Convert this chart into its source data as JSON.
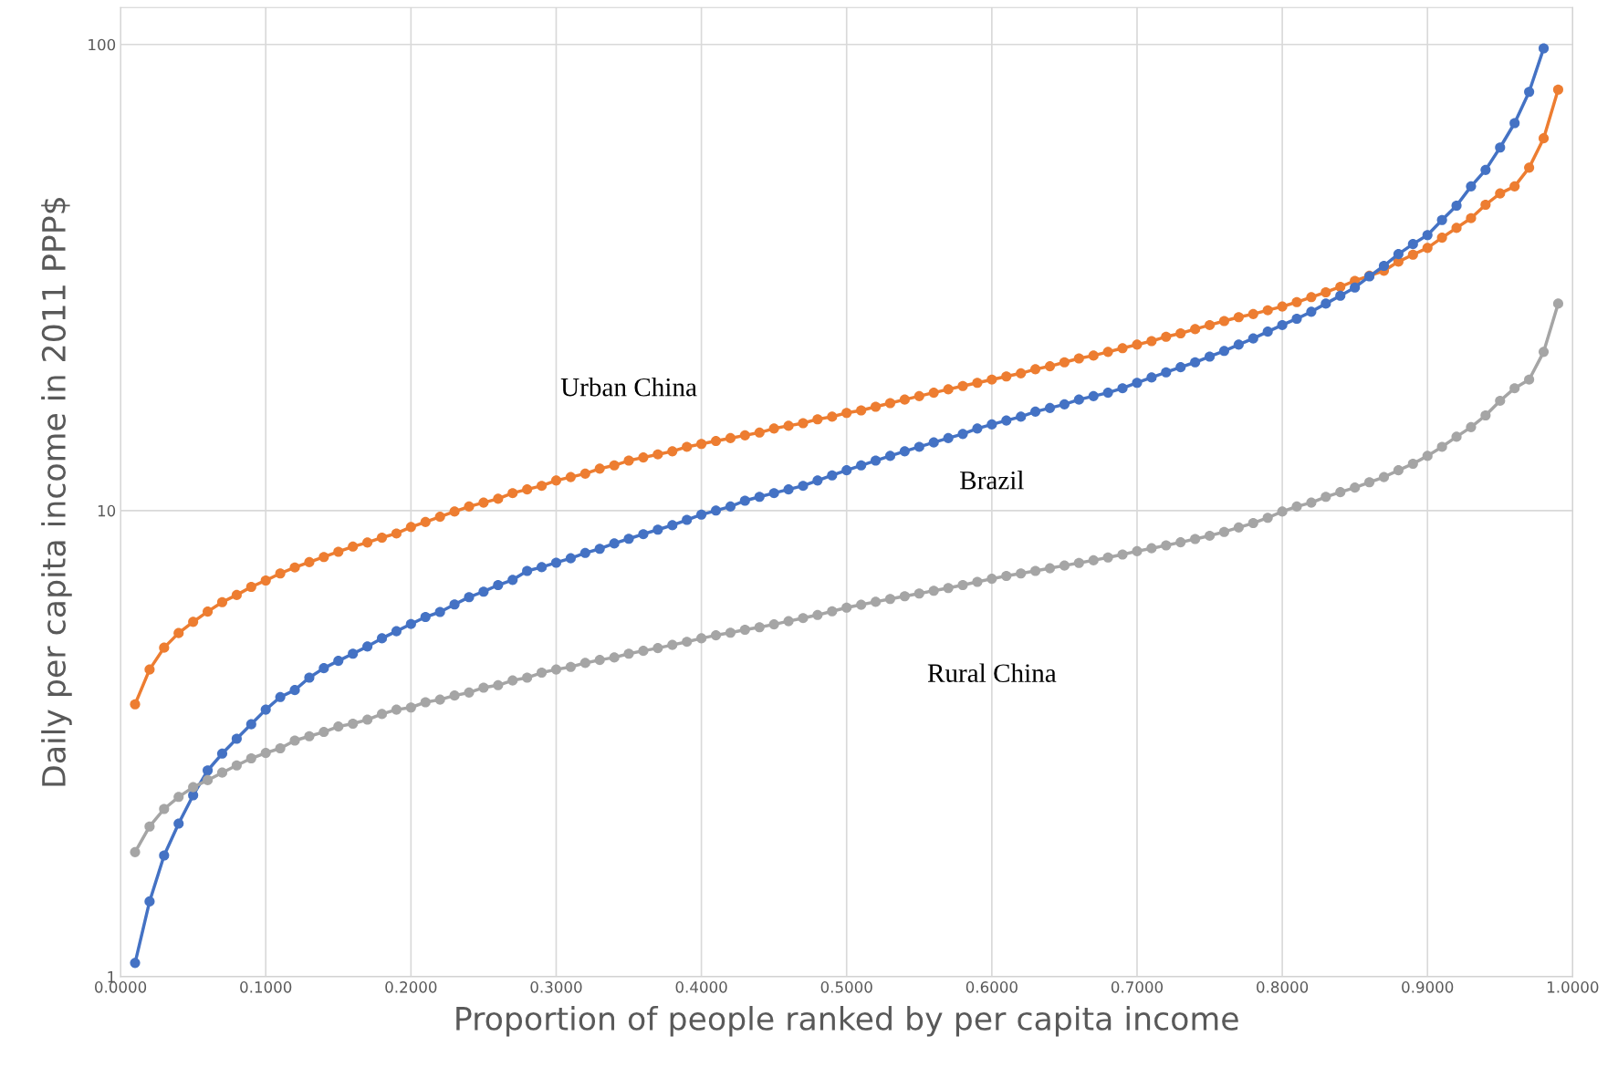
{
  "chart_data": {
    "type": "line",
    "xlabel": "Proportion of people ranked by per capita income",
    "ylabel": "Daily per capita income in 2011 PPP$",
    "log": "y",
    "grid": true,
    "legend": false,
    "marker": "circle",
    "line_style": "solid",
    "xlim": [
      0,
      1
    ],
    "xticks": [
      {
        "value": 0,
        "label": "0.0000"
      },
      {
        "value": 0.1,
        "label": "0.1000"
      },
      {
        "value": 0.2,
        "label": "0.2000"
      },
      {
        "value": 0.3,
        "label": "0.3000"
      },
      {
        "value": 0.4,
        "label": "0.4000"
      },
      {
        "value": 0.5,
        "label": "0.5000"
      },
      {
        "value": 0.6,
        "label": "0.6000"
      },
      {
        "value": 0.7,
        "label": "0.7000"
      },
      {
        "value": 0.8,
        "label": "0.8000"
      },
      {
        "value": 0.9,
        "label": "0.9000"
      },
      {
        "value": 1,
        "label": "1.0000"
      }
    ],
    "ylim": [
      1,
      120
    ],
    "yticks": [
      1,
      10,
      100
    ],
    "x": [
      0.01,
      0.02,
      0.03,
      0.04,
      0.05,
      0.06,
      0.07,
      0.08,
      0.09,
      0.1,
      0.11,
      0.12,
      0.13,
      0.14,
      0.15,
      0.16,
      0.17,
      0.18,
      0.19,
      0.2,
      0.21,
      0.22,
      0.23,
      0.24,
      0.25,
      0.26,
      0.27,
      0.28,
      0.29,
      0.3,
      0.31,
      0.32,
      0.33,
      0.34,
      0.35,
      0.36,
      0.37,
      0.38,
      0.39,
      0.4,
      0.41,
      0.42,
      0.43,
      0.44,
      0.45,
      0.46,
      0.47,
      0.48,
      0.49,
      0.5,
      0.51,
      0.52,
      0.53,
      0.54,
      0.55,
      0.56,
      0.57,
      0.58,
      0.59,
      0.6,
      0.61,
      0.62,
      0.63,
      0.64,
      0.65,
      0.66,
      0.67,
      0.68,
      0.69,
      0.7,
      0.71,
      0.72,
      0.73,
      0.74,
      0.75,
      0.76,
      0.77,
      0.78,
      0.79,
      0.8,
      0.81,
      0.82,
      0.83,
      0.84,
      0.85,
      0.86,
      0.87,
      0.88,
      0.89,
      0.9,
      0.91,
      0.92,
      0.93,
      0.94,
      0.95,
      0.96,
      0.97,
      0.98,
      0.99
    ],
    "series": [
      {
        "name": "Urban China",
        "color": "#ed7d31",
        "values": [
          3.84,
          4.56,
          5.08,
          5.46,
          5.77,
          6.07,
          6.36,
          6.59,
          6.86,
          7.08,
          7.33,
          7.55,
          7.75,
          7.95,
          8.16,
          8.37,
          8.54,
          8.75,
          8.93,
          9.22,
          9.45,
          9.7,
          9.95,
          10.2,
          10.4,
          10.6,
          10.9,
          11.1,
          11.3,
          11.6,
          11.8,
          12.0,
          12.3,
          12.5,
          12.8,
          13.0,
          13.2,
          13.4,
          13.7,
          13.9,
          14.1,
          14.3,
          14.5,
          14.7,
          15.0,
          15.2,
          15.4,
          15.7,
          15.9,
          16.2,
          16.4,
          16.7,
          17.0,
          17.3,
          17.6,
          17.9,
          18.2,
          18.5,
          18.8,
          19.1,
          19.4,
          19.7,
          20.1,
          20.4,
          20.8,
          21.2,
          21.5,
          21.9,
          22.3,
          22.7,
          23.1,
          23.6,
          24.0,
          24.5,
          25.0,
          25.5,
          26.0,
          26.4,
          26.9,
          27.4,
          28.0,
          28.7,
          29.4,
          30.2,
          31.1,
          31.9,
          32.7,
          34.2,
          35.4,
          36.6,
          38.5,
          40.4,
          42.4,
          45.3,
          47.9,
          49.6,
          54.4,
          62.9,
          80.0
        ]
      },
      {
        "name": "Brazil",
        "color": "#4472c4",
        "values": [
          1.07,
          1.45,
          1.82,
          2.13,
          2.45,
          2.77,
          3.01,
          3.24,
          3.48,
          3.74,
          3.98,
          4.12,
          4.38,
          4.59,
          4.76,
          4.93,
          5.11,
          5.32,
          5.51,
          5.71,
          5.91,
          6.06,
          6.29,
          6.52,
          6.7,
          6.92,
          7.1,
          7.42,
          7.56,
          7.73,
          7.9,
          8.11,
          8.28,
          8.5,
          8.7,
          8.9,
          9.1,
          9.3,
          9.55,
          9.8,
          10.0,
          10.2,
          10.5,
          10.7,
          10.9,
          11.1,
          11.3,
          11.6,
          11.9,
          12.2,
          12.5,
          12.8,
          13.1,
          13.4,
          13.7,
          14.0,
          14.3,
          14.6,
          15.0,
          15.3,
          15.6,
          15.9,
          16.3,
          16.6,
          16.9,
          17.3,
          17.6,
          17.9,
          18.3,
          18.8,
          19.3,
          19.8,
          20.3,
          20.8,
          21.4,
          22.0,
          22.7,
          23.4,
          24.2,
          25.0,
          25.8,
          26.7,
          27.8,
          28.9,
          30.1,
          31.8,
          33.5,
          35.5,
          37.3,
          39.0,
          42.0,
          45.1,
          49.6,
          53.8,
          60.1,
          67.8,
          79.1,
          98.1,
          null
        ]
      },
      {
        "name": "Rural China",
        "color": "#a5a5a5",
        "values": [
          1.85,
          2.1,
          2.29,
          2.43,
          2.55,
          2.64,
          2.74,
          2.84,
          2.94,
          3.02,
          3.09,
          3.21,
          3.28,
          3.35,
          3.44,
          3.49,
          3.56,
          3.66,
          3.74,
          3.78,
          3.88,
          3.93,
          4.01,
          4.07,
          4.17,
          4.22,
          4.32,
          4.38,
          4.49,
          4.56,
          4.62,
          4.71,
          4.78,
          4.84,
          4.93,
          5.0,
          5.07,
          5.15,
          5.23,
          5.32,
          5.4,
          5.47,
          5.55,
          5.62,
          5.7,
          5.79,
          5.88,
          5.97,
          6.08,
          6.19,
          6.28,
          6.37,
          6.46,
          6.55,
          6.64,
          6.73,
          6.82,
          6.92,
          7.03,
          7.14,
          7.24,
          7.33,
          7.42,
          7.52,
          7.62,
          7.72,
          7.82,
          7.93,
          8.05,
          8.18,
          8.3,
          8.42,
          8.55,
          8.69,
          8.83,
          9.0,
          9.2,
          9.4,
          9.65,
          9.95,
          10.2,
          10.4,
          10.7,
          10.95,
          11.2,
          11.5,
          11.8,
          12.2,
          12.6,
          13.1,
          13.7,
          14.4,
          15.1,
          16.0,
          17.2,
          18.3,
          19.1,
          21.9,
          27.8
        ]
      }
    ]
  }
}
